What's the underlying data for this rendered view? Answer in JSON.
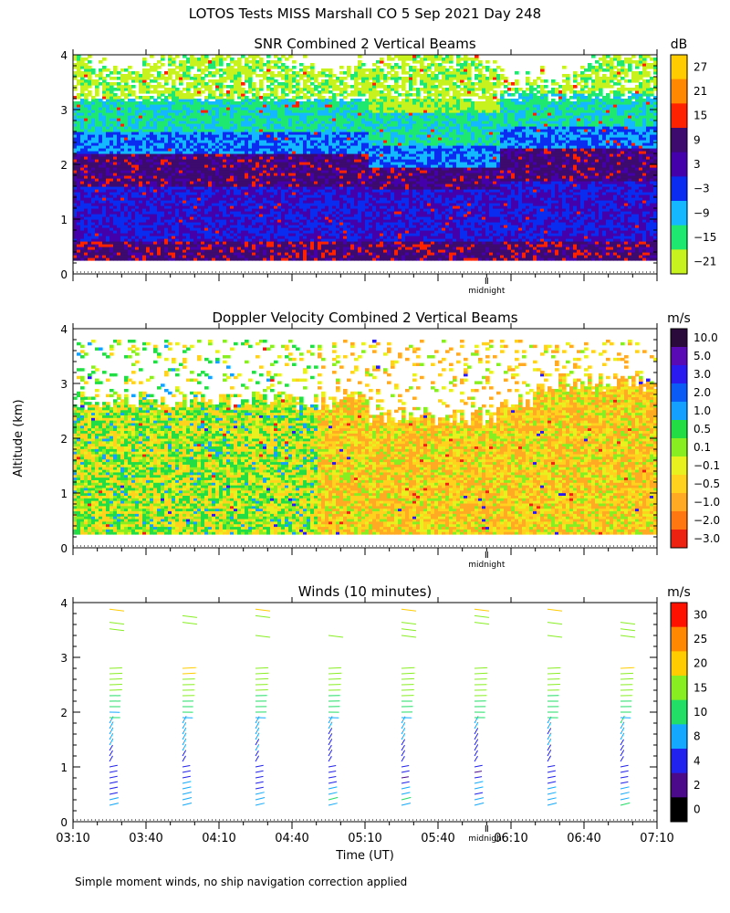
{
  "figure": {
    "title": "LOTOS Tests MISS Marshall CO    5 Sep 2021 Day 248",
    "y_axis_label": "Altitude (km)",
    "x_axis_label": "Time (UT)",
    "footnote": "Simple moment winds, no ship navigation correction applied",
    "midnight_label": "midnight"
  },
  "chart_data": [
    {
      "type": "heatmap",
      "title": "SNR Combined 2 Vertical Beams",
      "ylabel": "Altitude (km)",
      "ylim": [
        0,
        4
      ],
      "y_ticks": [
        "0",
        "1",
        "2",
        "3",
        "4"
      ],
      "xlim_minutes_since_0310": [
        0,
        240
      ],
      "data_altitude_range_km": [
        0.25,
        4.0
      ],
      "colorbar": {
        "unit": "dB",
        "labels": [
          "27",
          "21",
          "15",
          "9",
          "3",
          "−3",
          "−9",
          "−15",
          "−21"
        ],
        "colors": [
          "#ffcc00",
          "#ff8800",
          "#ff2200",
          "#3d0a6e",
          "#4400aa",
          "#0a2cf0",
          "#14b8ff",
          "#1ee870",
          "#c8f21e"
        ]
      },
      "description_profile": [
        {
          "altitude_km": [
            0.25,
            0.6
          ],
          "snr_db": 9
        },
        {
          "altitude_km": [
            0.6,
            1.6
          ],
          "snr_db": 0
        },
        {
          "altitude_km": [
            1.6,
            2.2
          ],
          "snr_db": 8
        },
        {
          "altitude_km": [
            2.2,
            2.6
          ],
          "snr_db": -6
        },
        {
          "altitude_km": [
            2.6,
            3.2
          ],
          "snr_db": -13
        },
        {
          "altitude_km": [
            3.2,
            4.0
          ],
          "snr_db": -20
        }
      ]
    },
    {
      "type": "heatmap",
      "title": "Doppler Velocity Combined 2 Vertical Beams",
      "ylabel": "Altitude (km)",
      "ylim": [
        0,
        4
      ],
      "y_ticks": [
        "0",
        "1",
        "2",
        "3",
        "4"
      ],
      "xlim_minutes_since_0310": [
        0,
        240
      ],
      "data_altitude_range_km": [
        0.25,
        3.8
      ],
      "colorbar": {
        "unit": "m/s",
        "labels": [
          "10.0",
          "5.0",
          "3.0",
          "2.0",
          "1.0",
          "0.5",
          "0.1",
          "−0.1",
          "−0.5",
          "−1.0",
          "−2.0",
          "−3.0"
        ],
        "colors": [
          "#2a0a3a",
          "#5a0ab4",
          "#2a1af0",
          "#0a5af5",
          "#14a0ff",
          "#22dd44",
          "#88ee22",
          "#e8f01e",
          "#ffd21e",
          "#ffaa22",
          "#ff7711",
          "#ee2211"
        ]
      }
    },
    {
      "type": "scatter",
      "title": "Winds (10 minutes)",
      "ylabel": "Altitude (km)",
      "ylim": [
        0,
        4
      ],
      "y_ticks": [
        "0",
        "1",
        "2",
        "3",
        "4"
      ],
      "x_ticks": [
        "03:10",
        "03:40",
        "04:10",
        "04:40",
        "05:10",
        "05:40",
        "06:10",
        "06:40",
        "07:10"
      ],
      "xlim_minutes_since_0310": [
        0,
        240
      ],
      "profile_times_minutes_since_0310": [
        15,
        45,
        75,
        105,
        135,
        165,
        195,
        225
      ],
      "colorbar": {
        "unit": "m/s",
        "labels": [
          "30",
          "25",
          "20",
          "15",
          "10",
          "8",
          "4",
          "2",
          "0"
        ],
        "colors": [
          "#ff1100",
          "#ff8800",
          "#ffcc00",
          "#88ee22",
          "#22dd66",
          "#14a8ff",
          "#2222ee",
          "#4a0a8a",
          "#000000"
        ]
      },
      "wind_speed_profile": [
        {
          "altitude_km": 0.3,
          "speed_ms": 9
        },
        {
          "altitude_km": 0.8,
          "speed_ms": 4
        },
        {
          "altitude_km": 1.3,
          "speed_ms": 5
        },
        {
          "altitude_km": 1.8,
          "speed_ms": 8
        },
        {
          "altitude_km": 2.3,
          "speed_ms": 13
        },
        {
          "altitude_km": 2.8,
          "speed_ms": 17
        },
        {
          "altitude_km": 3.5,
          "speed_ms": 16
        },
        {
          "altitude_km": 3.9,
          "speed_ms": 18
        }
      ]
    }
  ]
}
